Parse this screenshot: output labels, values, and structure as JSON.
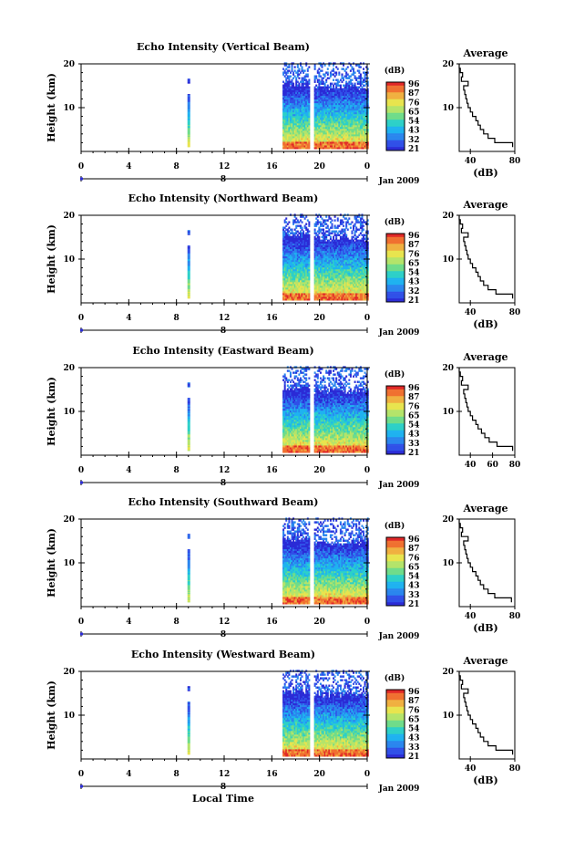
{
  "colors": [
    "#2b2bd6",
    "#3050e8",
    "#2a86ee",
    "#1fb2f0",
    "#2dd0c8",
    "#6fdc8a",
    "#b4e46a",
    "#e8e44e",
    "#f0b040",
    "#f07030",
    "#e02828"
  ],
  "colorbar_unit": "(dB)",
  "colorbar_ticks": [
    "96",
    "87",
    "76",
    "65",
    "54",
    "43",
    "32",
    "21"
  ],
  "colorbar_ticks_alt": [
    "96",
    "87",
    "76",
    "65",
    "54",
    "43",
    "33",
    "21"
  ],
  "date_label": "Jan 2009",
  "day_label": "8",
  "xlabel": "Local Time",
  "x_ticks": [
    "0",
    "4",
    "8",
    "12",
    "16",
    "20",
    "0"
  ],
  "chart_data": [
    {
      "type": "heatmap",
      "title": "Echo Intensity (Vertical Beam)",
      "ylabel": "Height (km)",
      "xlim": [
        0,
        24
      ],
      "ylim": [
        0,
        20
      ],
      "y_ticks": [
        "20",
        "10"
      ],
      "colorbar_ticks": [
        "96",
        "87",
        "76",
        "65",
        "54",
        "43",
        "32",
        "21"
      ],
      "profile": {
        "title": "Average",
        "xlabel": "(dB)",
        "x_ticks": [
          "40",
          "80"
        ],
        "xlim": [
          30,
          80
        ],
        "y_ticks": [
          "20",
          "10"
        ],
        "height": [
          1,
          2,
          3,
          4,
          5,
          6,
          7,
          8,
          9,
          10,
          11,
          12,
          13,
          14,
          15,
          16,
          17,
          18,
          19,
          20
        ],
        "db": [
          78,
          62,
          56,
          52,
          49,
          47,
          45,
          42,
          40,
          38,
          37,
          36,
          35,
          34,
          38,
          32,
          33,
          31,
          30,
          30
        ]
      }
    },
    {
      "type": "heatmap",
      "title": "Echo Intensity (Northward Beam)",
      "ylabel": "Height (km)",
      "xlim": [
        0,
        24
      ],
      "ylim": [
        0,
        20
      ],
      "y_ticks": [
        "20",
        "10"
      ],
      "colorbar_ticks": [
        "96",
        "87",
        "76",
        "65",
        "54",
        "43",
        "32",
        "21"
      ],
      "profile": {
        "title": "Average",
        "xlabel": "(dB)",
        "x_ticks": [
          "40",
          "80"
        ],
        "xlim": [
          30,
          80
        ],
        "y_ticks": [
          "20",
          "10"
        ],
        "height": [
          1,
          2,
          3,
          4,
          5,
          6,
          7,
          8,
          9,
          10,
          11,
          12,
          13,
          14,
          15,
          16,
          17,
          18,
          19,
          20
        ],
        "db": [
          78,
          63,
          56,
          52,
          49,
          47,
          45,
          42,
          40,
          38,
          37,
          36,
          35,
          34,
          38,
          32,
          33,
          31,
          30,
          30
        ]
      }
    },
    {
      "type": "heatmap",
      "title": "Echo Intensity (Eastward Beam)",
      "ylabel": "Height (km)",
      "xlim": [
        0,
        24
      ],
      "ylim": [
        0,
        20
      ],
      "y_ticks": [
        "20",
        "10"
      ],
      "colorbar_ticks": [
        "96",
        "87",
        "76",
        "65",
        "54",
        "43",
        "33",
        "21"
      ],
      "profile": {
        "title": "Average",
        "xlabel": "",
        "x_ticks": [
          "40",
          "60",
          "80"
        ],
        "xlim": [
          30,
          80
        ],
        "y_ticks": [
          "20",
          "10"
        ],
        "height": [
          1,
          2,
          3,
          4,
          5,
          6,
          7,
          8,
          9,
          10,
          11,
          12,
          13,
          14,
          15,
          16,
          17,
          18,
          19,
          20
        ],
        "db": [
          78,
          64,
          57,
          53,
          50,
          47,
          45,
          42,
          40,
          38,
          37,
          36,
          35,
          34,
          38,
          32,
          33,
          31,
          30,
          30
        ]
      }
    },
    {
      "type": "heatmap",
      "title": "Echo Intensity (Southward Beam)",
      "ylabel": "Height (km)",
      "xlim": [
        0,
        24
      ],
      "ylim": [
        0,
        20
      ],
      "y_ticks": [
        "20",
        "10"
      ],
      "colorbar_ticks": [
        "96",
        "87",
        "76",
        "65",
        "54",
        "43",
        "33",
        "21"
      ],
      "profile": {
        "title": "Average",
        "xlabel": "(dB)",
        "x_ticks": [
          "40",
          "80"
        ],
        "xlim": [
          30,
          80
        ],
        "y_ticks": [
          "20",
          "10"
        ],
        "height": [
          1,
          2,
          3,
          4,
          5,
          6,
          7,
          8,
          9,
          10,
          11,
          12,
          13,
          14,
          15,
          16,
          17,
          18,
          19,
          20
        ],
        "db": [
          77,
          62,
          56,
          52,
          49,
          47,
          45,
          42,
          40,
          38,
          37,
          36,
          35,
          34,
          38,
          32,
          33,
          31,
          30,
          30
        ]
      }
    },
    {
      "type": "heatmap",
      "title": "Echo Intensity (Westward Beam)",
      "ylabel": "Height (km)",
      "xlim": [
        0,
        24
      ],
      "ylim": [
        0,
        20
      ],
      "y_ticks": [
        "20",
        "10"
      ],
      "colorbar_ticks": [
        "96",
        "87",
        "76",
        "65",
        "54",
        "43",
        "33",
        "21"
      ],
      "profile": {
        "title": "Average",
        "xlabel": "(dB)",
        "x_ticks": [
          "40",
          "80"
        ],
        "xlim": [
          30,
          80
        ],
        "y_ticks": [
          "20",
          "10"
        ],
        "height": [
          1,
          2,
          3,
          4,
          5,
          6,
          7,
          8,
          9,
          10,
          11,
          12,
          13,
          14,
          15,
          16,
          17,
          18,
          19,
          20
        ],
        "db": [
          78,
          63,
          56,
          52,
          49,
          47,
          45,
          42,
          40,
          38,
          37,
          36,
          35,
          34,
          38,
          32,
          33,
          31,
          30,
          30
        ]
      }
    }
  ]
}
